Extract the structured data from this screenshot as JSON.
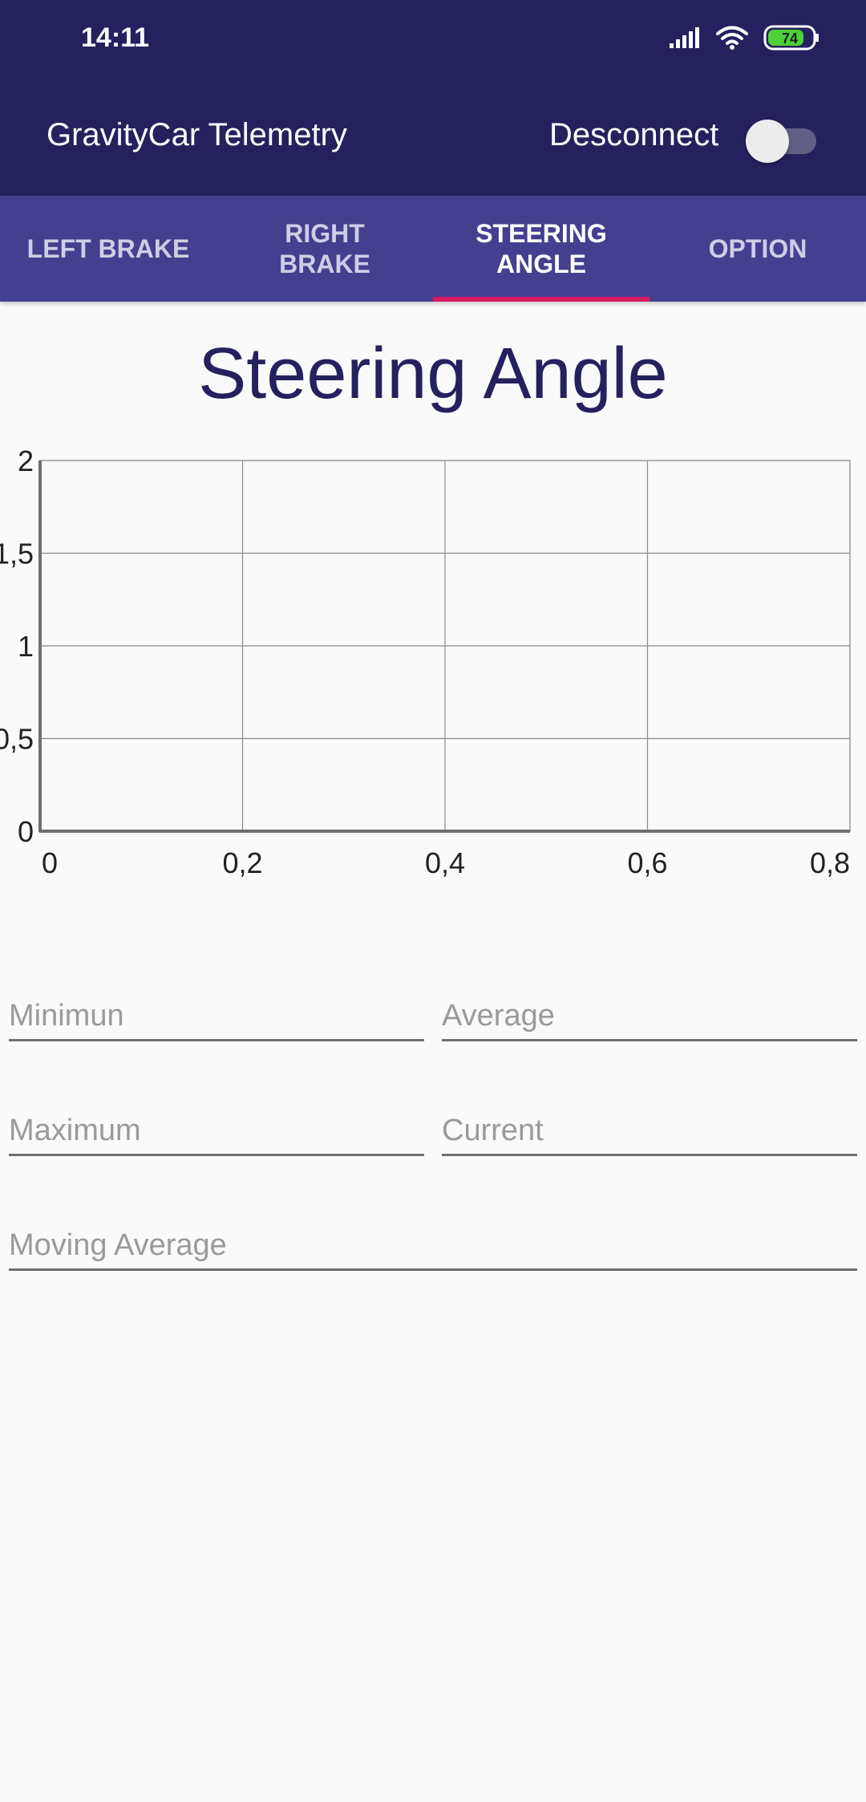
{
  "status_bar": {
    "time": "14:11",
    "battery": "74"
  },
  "app_bar": {
    "title": "GravityCar Telemetry",
    "disconnect_label": "Desconnect"
  },
  "tabs": [
    {
      "label": "LEFT BRAKE"
    },
    {
      "label": "RIGHT\nBRAKE"
    },
    {
      "label": "STEERING\nANGLE",
      "active": true
    },
    {
      "label": "OPTION"
    }
  ],
  "page_title": "Steering Angle",
  "chart_data": {
    "type": "line",
    "title": "",
    "xlabel": "",
    "ylabel": "",
    "x_ticks": [
      "0",
      "0,2",
      "0,4",
      "0,6",
      "0,8"
    ],
    "y_ticks": [
      "0",
      "0,5",
      "1",
      "1,5",
      "2"
    ],
    "xlim": [
      0,
      0.8
    ],
    "ylim": [
      0,
      2
    ],
    "grid": true,
    "series": []
  },
  "fields": {
    "minimum_placeholder": "Minimun",
    "average_placeholder": "Average",
    "maximum_placeholder": "Maximum",
    "current_placeholder": "Current",
    "moving_average_placeholder": "Moving Average"
  },
  "colors": {
    "primary": "#25215e",
    "tab_bar": "#44408f",
    "accent": "#d81b60"
  }
}
